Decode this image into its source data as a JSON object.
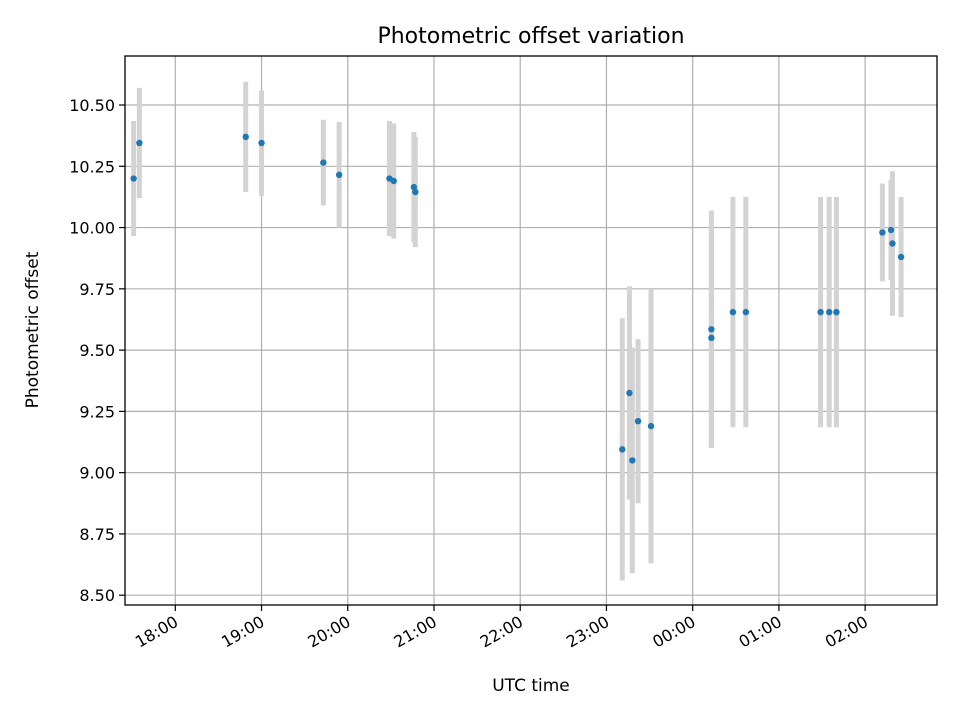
{
  "chart_data": {
    "type": "scatter",
    "title": "Photometric offset variation",
    "xlabel": "UTC time",
    "ylabel": "Photometric offset",
    "x_unit": "UTC time (HH:MM), observation night crossing midnight",
    "xlim": [
      "17:25",
      "02:50"
    ],
    "ylim": [
      8.46,
      10.7
    ],
    "x_ticks": [
      "18:00",
      "19:00",
      "20:00",
      "21:00",
      "22:00",
      "23:00",
      "00:00",
      "01:00",
      "02:00"
    ],
    "y_ticks": [
      "8.50",
      "8.75",
      "9.00",
      "9.25",
      "9.50",
      "9.75",
      "10.00",
      "10.25",
      "10.50"
    ],
    "grid": true,
    "legend": "none",
    "colors": {
      "points": "#1f77b4",
      "error_bars": "#d3d3d3",
      "grid": "#b0b0b0"
    },
    "points": [
      {
        "x": "17:31",
        "y": 10.2,
        "err": 0.235
      },
      {
        "x": "17:35",
        "y": 10.345,
        "err": 0.225
      },
      {
        "x": "18:49",
        "y": 10.37,
        "err": 0.225
      },
      {
        "x": "19:00",
        "y": 10.345,
        "err": 0.215
      },
      {
        "x": "19:43",
        "y": 10.265,
        "err": 0.175
      },
      {
        "x": "19:54",
        "y": 10.215,
        "err": 0.215
      },
      {
        "x": "20:29",
        "y": 10.2,
        "err": 0.235
      },
      {
        "x": "20:32",
        "y": 10.19,
        "err": 0.235
      },
      {
        "x": "20:46",
        "y": 10.165,
        "err": 0.225
      },
      {
        "x": "20:47",
        "y": 10.145,
        "err": 0.225
      },
      {
        "x": "23:11",
        "y": 9.095,
        "err": 0.535
      },
      {
        "x": "23:16",
        "y": 9.325,
        "err": 0.435
      },
      {
        "x": "23:18",
        "y": 9.05,
        "err": 0.46
      },
      {
        "x": "23:22",
        "y": 9.21,
        "err": 0.335
      },
      {
        "x": "23:31",
        "y": 9.19,
        "err": 0.56
      },
      {
        "x": "00:13",
        "y": 9.585,
        "err": 0.485
      },
      {
        "x": "00:13",
        "y": 9.55,
        "err": 0.445
      },
      {
        "x": "00:28",
        "y": 9.655,
        "err": 0.47
      },
      {
        "x": "00:37",
        "y": 9.655,
        "err": 0.47
      },
      {
        "x": "01:29",
        "y": 9.655,
        "err": 0.47
      },
      {
        "x": "01:35",
        "y": 9.655,
        "err": 0.47
      },
      {
        "x": "01:40",
        "y": 9.655,
        "err": 0.47
      },
      {
        "x": "02:12",
        "y": 9.98,
        "err": 0.2
      },
      {
        "x": "02:18",
        "y": 9.99,
        "err": 0.205
      },
      {
        "x": "02:19",
        "y": 9.935,
        "err": 0.295
      },
      {
        "x": "02:25",
        "y": 9.88,
        "err": 0.245
      }
    ]
  }
}
